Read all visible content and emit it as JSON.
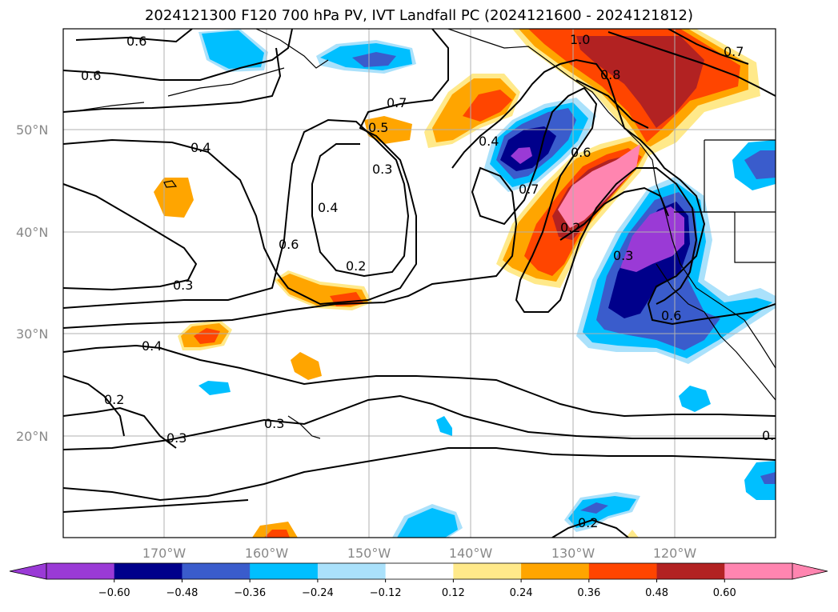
{
  "title": "2024121300 F120 700 hPa PV, IVT Landfall PC (2024121600 - 2024121812)",
  "lat_labels": [
    "50°N",
    "40°N",
    "30°N",
    "20°N"
  ],
  "lon_labels": [
    "170°W",
    "160°W",
    "150°W",
    "140°W",
    "130°W",
    "120°W"
  ],
  "contour_labels": [
    "0.6",
    "0.6",
    "0.7",
    "1.0",
    "0.7",
    "0.8",
    "0.5",
    "0.4",
    "0.4",
    "0.3",
    "0.4",
    "0.6",
    "0.2",
    "0.7",
    "0.6",
    "0.2",
    "0.3",
    "0.3",
    "0.6",
    "0.4",
    "0.2",
    "0.3",
    "0.3",
    "0.2",
    "0."
  ],
  "colorbar": {
    "ticks": [
      "−0.60",
      "−0.48",
      "−0.36",
      "−0.24",
      "−0.12",
      "0.12",
      "0.24",
      "0.36",
      "0.48",
      "0.60"
    ],
    "bins": [
      "#9a3ad6",
      "#00008b",
      "#3a5ccc",
      "#00bfff",
      "#aae1fb",
      "#ffffff",
      "#ffe98a",
      "#ffa500",
      "#ff4500",
      "#b22222"
    ],
    "under_color": "#9a3ad6",
    "over_color": "#ff85b0"
  }
}
